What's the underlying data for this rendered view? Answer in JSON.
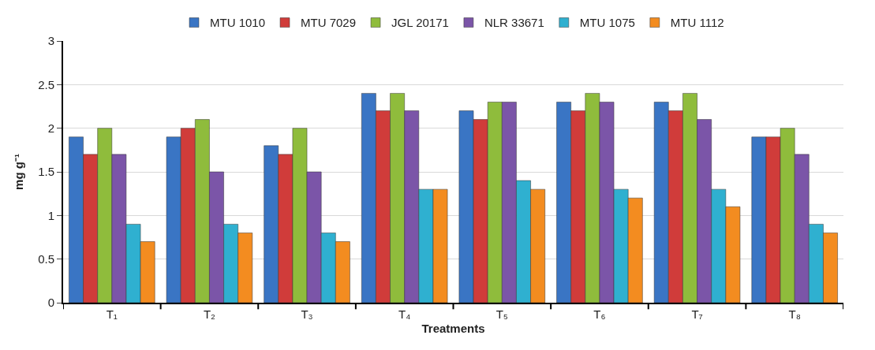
{
  "chart_data": {
    "type": "bar",
    "xlabel": "Treatments",
    "ylabel": "mg g⁻¹",
    "categories": [
      "T₁",
      "T₂",
      "T₃",
      "T₄",
      "T₅",
      "T₆",
      "T₇",
      "T₈"
    ],
    "series": [
      {
        "name": "MTU 1010",
        "color": "#3a75c4",
        "values": [
          1.9,
          1.9,
          1.8,
          2.4,
          2.2,
          2.3,
          2.3,
          1.9
        ]
      },
      {
        "name": "MTU 7029",
        "color": "#d03c3a",
        "values": [
          1.7,
          2.0,
          1.7,
          2.2,
          2.1,
          2.2,
          2.2,
          1.9
        ]
      },
      {
        "name": "JGL 20171",
        "color": "#8fbc3c",
        "values": [
          2.0,
          2.1,
          2.0,
          2.4,
          2.3,
          2.4,
          2.4,
          2.0
        ]
      },
      {
        "name": "NLR 33671",
        "color": "#7b55a8",
        "values": [
          1.7,
          1.5,
          1.5,
          2.2,
          2.3,
          2.3,
          2.1,
          1.7
        ]
      },
      {
        "name": "MTU 1075",
        "color": "#2fb0d0",
        "values": [
          0.9,
          0.9,
          0.8,
          1.3,
          1.4,
          1.3,
          1.3,
          0.9
        ]
      },
      {
        "name": "MTU 1112",
        "color": "#f38c20",
        "values": [
          0.7,
          0.8,
          0.7,
          1.3,
          1.3,
          1.2,
          1.1,
          0.8
        ]
      }
    ],
    "ylim": [
      0,
      3
    ],
    "yticks": [
      0,
      0.5,
      1,
      1.5,
      2,
      2.5,
      3
    ],
    "grid": "y",
    "legend": "top"
  }
}
